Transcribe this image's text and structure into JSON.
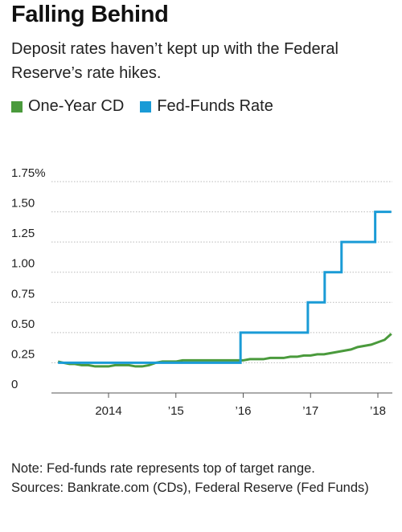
{
  "title": "Falling Behind",
  "subtitle": "Deposit rates haven’t kept up with the Federal Reserve’s rate hikes.",
  "notes": {
    "note": "Note: Fed-funds rate represents top of target range.",
    "sources": "Sources: Bankrate.com (CDs), Federal Reserve (Fed Funds)"
  },
  "chart_data": {
    "type": "line",
    "title": "Falling Behind",
    "subtitle": "Deposit rates haven’t kept up with the Federal Reserve’s rate hikes.",
    "xlim": [
      2013.25,
      2018.2
    ],
    "ylim": [
      0,
      1.75
    ],
    "grid": true,
    "y_ticks": [
      {
        "value": 0,
        "label": "0"
      },
      {
        "value": 0.25,
        "label": "0.25"
      },
      {
        "value": 0.5,
        "label": "0.50"
      },
      {
        "value": 0.75,
        "label": "0.75"
      },
      {
        "value": 1.0,
        "label": "1.00"
      },
      {
        "value": 1.25,
        "label": "1.25"
      },
      {
        "value": 1.5,
        "label": "1.50"
      },
      {
        "value": 1.75,
        "label": "1.75%"
      }
    ],
    "x_ticks": [
      {
        "value": 2014,
        "label": "2014"
      },
      {
        "value": 2015,
        "label": "’15"
      },
      {
        "value": 2016,
        "label": "’16"
      },
      {
        "value": 2017,
        "label": "’17"
      },
      {
        "value": 2018,
        "label": "’18"
      }
    ],
    "legend_position": "top-left",
    "series": [
      {
        "name": "One-Year CD",
        "color": "#4a9a3c",
        "step": false,
        "points": [
          [
            2013.25,
            0.26
          ],
          [
            2013.33,
            0.25
          ],
          [
            2013.42,
            0.24
          ],
          [
            2013.5,
            0.24
          ],
          [
            2013.6,
            0.23
          ],
          [
            2013.7,
            0.23
          ],
          [
            2013.8,
            0.22
          ],
          [
            2013.9,
            0.22
          ],
          [
            2014.0,
            0.22
          ],
          [
            2014.1,
            0.23
          ],
          [
            2014.2,
            0.23
          ],
          [
            2014.3,
            0.23
          ],
          [
            2014.4,
            0.22
          ],
          [
            2014.5,
            0.22
          ],
          [
            2014.6,
            0.23
          ],
          [
            2014.7,
            0.25
          ],
          [
            2014.8,
            0.26
          ],
          [
            2014.9,
            0.26
          ],
          [
            2015.0,
            0.26
          ],
          [
            2015.1,
            0.27
          ],
          [
            2015.2,
            0.27
          ],
          [
            2015.3,
            0.27
          ],
          [
            2015.4,
            0.27
          ],
          [
            2015.5,
            0.27
          ],
          [
            2015.6,
            0.27
          ],
          [
            2015.7,
            0.27
          ],
          [
            2015.8,
            0.27
          ],
          [
            2015.9,
            0.27
          ],
          [
            2016.0,
            0.27
          ],
          [
            2016.1,
            0.28
          ],
          [
            2016.2,
            0.28
          ],
          [
            2016.3,
            0.28
          ],
          [
            2016.4,
            0.29
          ],
          [
            2016.5,
            0.29
          ],
          [
            2016.6,
            0.29
          ],
          [
            2016.7,
            0.3
          ],
          [
            2016.8,
            0.3
          ],
          [
            2016.9,
            0.31
          ],
          [
            2017.0,
            0.31
          ],
          [
            2017.1,
            0.32
          ],
          [
            2017.2,
            0.32
          ],
          [
            2017.3,
            0.33
          ],
          [
            2017.4,
            0.34
          ],
          [
            2017.5,
            0.35
          ],
          [
            2017.6,
            0.36
          ],
          [
            2017.7,
            0.38
          ],
          [
            2017.8,
            0.39
          ],
          [
            2017.9,
            0.4
          ],
          [
            2018.0,
            0.42
          ],
          [
            2018.1,
            0.44
          ],
          [
            2018.2,
            0.49
          ]
        ]
      },
      {
        "name": "Fed-Funds Rate",
        "color": "#1a9bd6",
        "step": true,
        "points": [
          [
            2013.25,
            0.25
          ],
          [
            2015.96,
            0.5
          ],
          [
            2016.96,
            0.75
          ],
          [
            2017.21,
            1.0
          ],
          [
            2017.46,
            1.25
          ],
          [
            2017.96,
            1.5
          ],
          [
            2018.2,
            1.5
          ]
        ]
      }
    ]
  }
}
